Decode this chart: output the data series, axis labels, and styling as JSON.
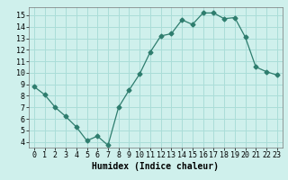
{
  "x": [
    0,
    1,
    2,
    3,
    4,
    5,
    6,
    7,
    8,
    9,
    10,
    11,
    12,
    13,
    14,
    15,
    16,
    17,
    18,
    19,
    20,
    21,
    22,
    23
  ],
  "y": [
    8.8,
    8.1,
    7.0,
    6.2,
    5.3,
    4.1,
    4.5,
    3.7,
    7.0,
    8.5,
    9.9,
    11.8,
    13.2,
    13.4,
    14.6,
    14.2,
    15.2,
    15.2,
    14.7,
    14.8,
    13.1,
    10.5,
    10.1,
    9.8
  ],
  "xlabel": "Humidex (Indice chaleur)",
  "xlim": [
    -0.5,
    23.5
  ],
  "ylim": [
    3.5,
    15.7
  ],
  "yticks": [
    4,
    5,
    6,
    7,
    8,
    9,
    10,
    11,
    12,
    13,
    14,
    15
  ],
  "xticks": [
    0,
    1,
    2,
    3,
    4,
    5,
    6,
    7,
    8,
    9,
    10,
    11,
    12,
    13,
    14,
    15,
    16,
    17,
    18,
    19,
    20,
    21,
    22,
    23
  ],
  "xtick_labels": [
    "0",
    "1",
    "2",
    "3",
    "4",
    "5",
    "6",
    "7",
    "8",
    "9",
    "10",
    "11",
    "12",
    "13",
    "14",
    "15",
    "16",
    "17",
    "18",
    "19",
    "20",
    "21",
    "22",
    "23"
  ],
  "line_color": "#2e7d6e",
  "marker_size": 2.5,
  "bg_color": "#cff0ec",
  "grid_color": "#aaddd8",
  "label_fontsize": 7.0,
  "tick_fontsize": 6.0
}
